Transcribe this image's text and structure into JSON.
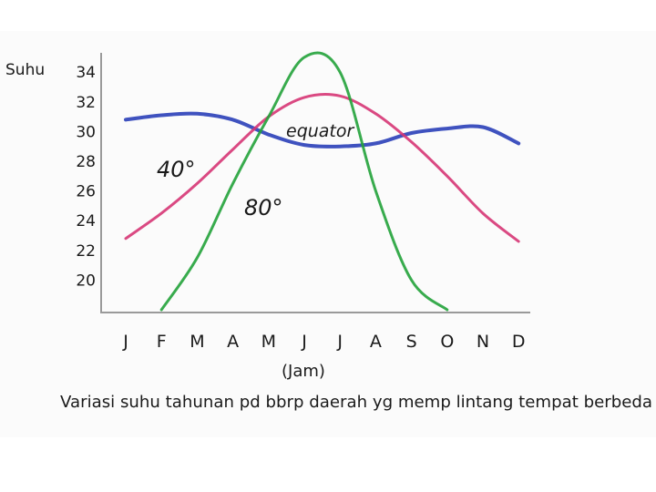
{
  "chart_data": {
    "type": "line",
    "ylabel": "Suhu",
    "xlabel": "(Jam)",
    "title": "Variasi suhu tahunan pd bbrp daerah yg memp lintang tempat berbeda",
    "categories": [
      "J",
      "F",
      "M",
      "A",
      "M",
      "J",
      "J",
      "A",
      "S",
      "O",
      "N",
      "D"
    ],
    "yticks": [
      20,
      22,
      24,
      26,
      28,
      30,
      32,
      34
    ],
    "ylim": [
      18,
      35
    ],
    "grid": false,
    "series": [
      {
        "name": "equator",
        "color": "#2a3fb8",
        "values": [
          30.8,
          31.1,
          31.2,
          30.8,
          29.8,
          29.1,
          29.0,
          29.2,
          29.9,
          30.2,
          30.3,
          29.2
        ]
      },
      {
        "name": "40°",
        "color": "#d63574",
        "values": [
          22.8,
          24.5,
          26.5,
          28.8,
          31.0,
          32.3,
          32.4,
          31.2,
          29.3,
          27.0,
          24.5,
          22.6
        ]
      },
      {
        "name": "80°",
        "color": "#22a23a",
        "values": [
          null,
          18.0,
          21.5,
          26.5,
          31.0,
          35.0,
          34.0,
          26.0,
          20.0,
          18.0,
          null,
          null
        ]
      }
    ]
  }
}
